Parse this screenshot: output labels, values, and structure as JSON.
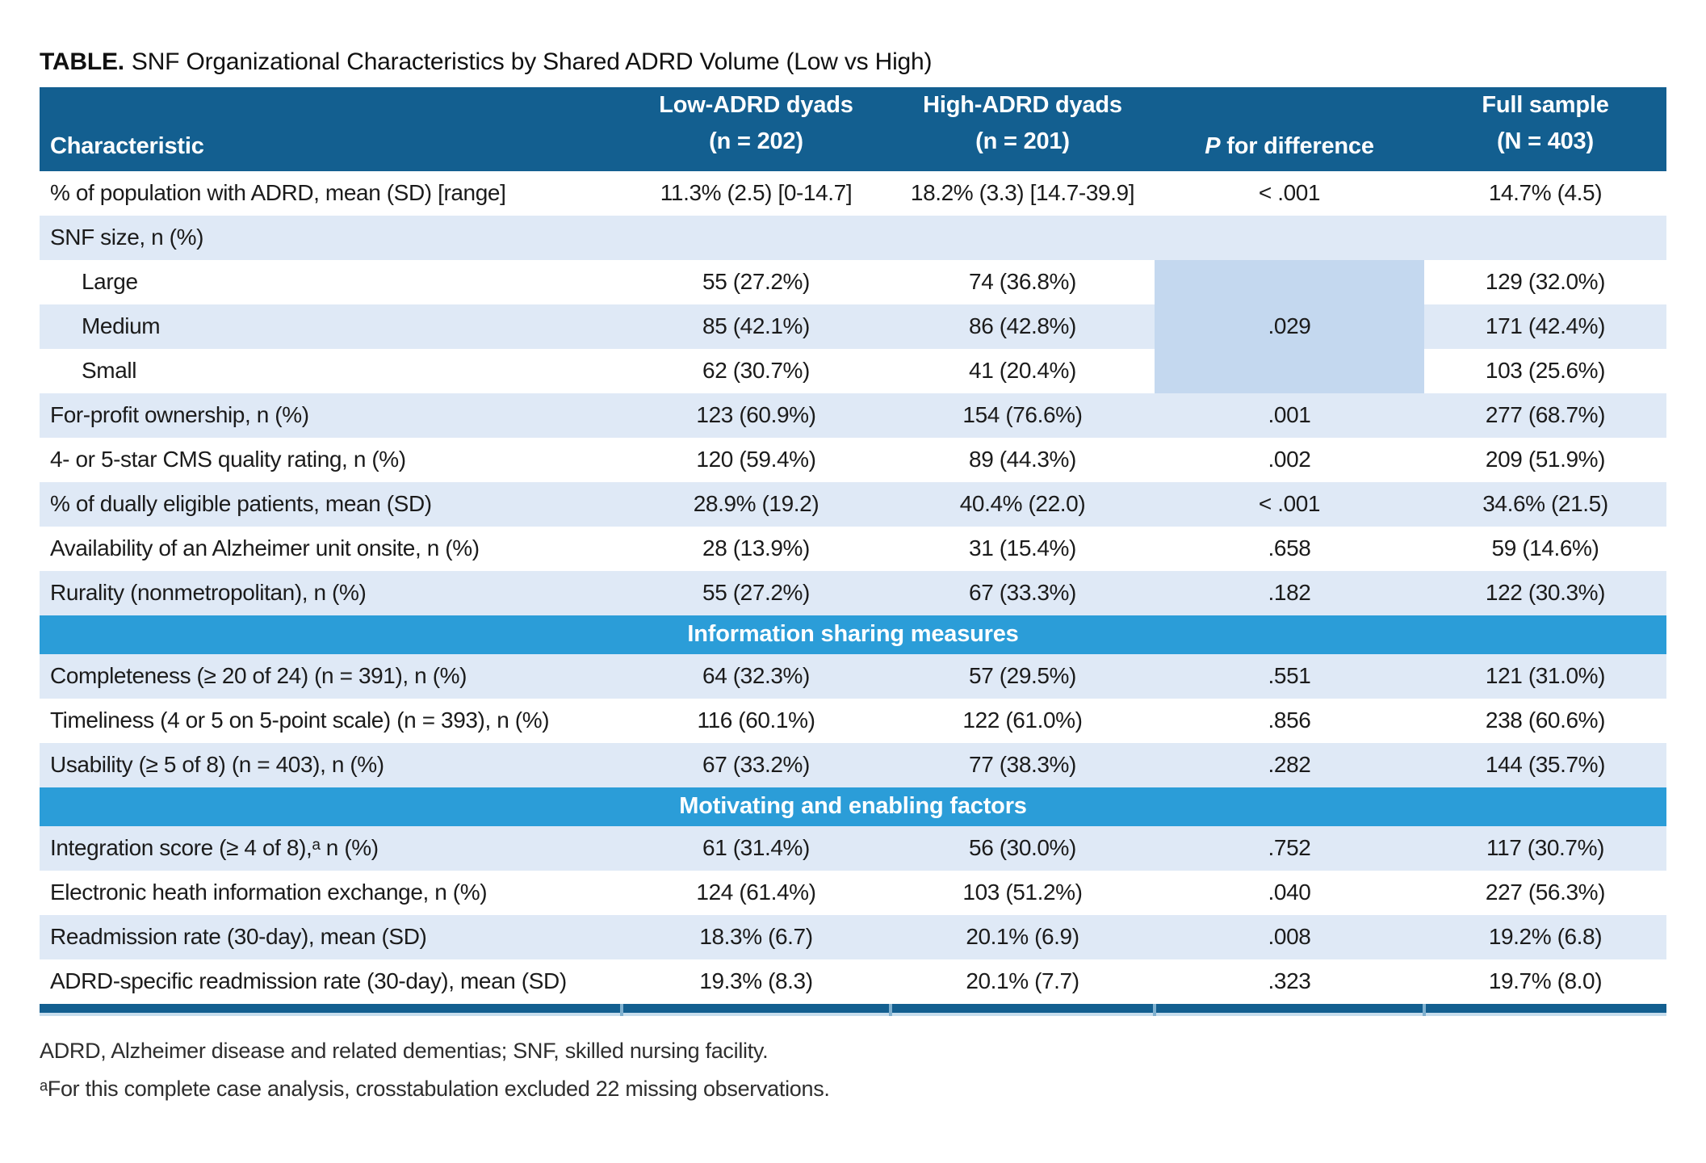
{
  "page": {
    "title_prefix": "TABLE.",
    "title_rest": "SNF Organizational Characteristics by Shared ADRD Volume (Low vs High)"
  },
  "colors": {
    "header_blue": "#135f90",
    "section_blue": "#2b9dd8",
    "row_shade_blue": "#dfe9f6",
    "merged_cell_blue": "#c4d8ef",
    "footer_bar_blue": "#135f90"
  },
  "table": {
    "header": {
      "characteristic": "Characteristic",
      "low": [
        "Low-ADRD dyads",
        "(n = 202)"
      ],
      "high": [
        "High-ADRD dyads",
        "(n = 201)"
      ],
      "p": {
        "italic": "P",
        "rest": " for difference"
      },
      "full": [
        "Full sample",
        "(N = 403)"
      ]
    },
    "rows": [
      {
        "type": "data",
        "label": "% of population with ADRD, mean (SD) [range]",
        "indent": false,
        "low": "11.3% (2.5) [0-14.7]",
        "high": "18.2% (3.3) [14.7-39.9]",
        "p": "< .001",
        "full": "14.7% (4.5)",
        "shade": false
      },
      {
        "type": "group",
        "label": "SNF size, n (%)",
        "shade": true
      },
      {
        "type": "data",
        "label": "Large",
        "indent": true,
        "low": "55 (27.2%)",
        "high": "74 (36.8%)",
        "p": ".029",
        "p_rowspan": 3,
        "full": "129 (32.0%)",
        "shade": false
      },
      {
        "type": "data",
        "label": "Medium",
        "indent": true,
        "low": "85 (42.1%)",
        "high": "86 (42.8%)",
        "full": "171 (42.4%)",
        "shade": true
      },
      {
        "type": "data",
        "label": "Small",
        "indent": true,
        "low": "62 (30.7%)",
        "high": "41 (20.4%)",
        "full": "103 (25.6%)",
        "shade": false
      },
      {
        "type": "data",
        "label": "For-profit ownership, n (%)",
        "indent": false,
        "low": "123 (60.9%)",
        "high": "154 (76.6%)",
        "p": ".001",
        "full": "277 (68.7%)",
        "shade": true
      },
      {
        "type": "data",
        "label": "4- or 5-star CMS quality rating, n (%)",
        "indent": false,
        "low": "120 (59.4%)",
        "high": "89 (44.3%)",
        "p": ".002",
        "full": "209 (51.9%)",
        "shade": false
      },
      {
        "type": "data",
        "label": "% of dually eligible patients, mean (SD)",
        "indent": false,
        "low": "28.9% (19.2)",
        "high": "40.4% (22.0)",
        "p": "< .001",
        "full": "34.6% (21.5)",
        "shade": true
      },
      {
        "type": "data",
        "label": "Availability of an Alzheimer unit onsite, n (%)",
        "indent": false,
        "low": "28 (13.9%)",
        "high": "31 (15.4%)",
        "p": ".658",
        "full": "59 (14.6%)",
        "shade": false
      },
      {
        "type": "data",
        "label": "Rurality (nonmetropolitan), n (%)",
        "indent": false,
        "low": "55 (27.2%)",
        "high": "67 (33.3%)",
        "p": ".182",
        "full": "122 (30.3%)",
        "shade": true
      },
      {
        "type": "section",
        "label": "Information sharing measures"
      },
      {
        "type": "data",
        "label": "Completeness (≥ 20 of 24) (n = 391), n (%)",
        "indent": false,
        "low": "64 (32.3%)",
        "high": "57 (29.5%)",
        "p": ".551",
        "full": "121 (31.0%)",
        "shade": true
      },
      {
        "type": "data",
        "label": "Timeliness (4 or 5 on 5-point scale) (n = 393), n (%)",
        "indent": false,
        "low": "116 (60.1%)",
        "high": "122 (61.0%)",
        "p": ".856",
        "full": "238 (60.6%)",
        "shade": false
      },
      {
        "type": "data",
        "label": "Usability (≥ 5 of 8) (n = 403), n (%)",
        "indent": false,
        "low": "67 (33.2%)",
        "high": "77 (38.3%)",
        "p": ".282",
        "full": "144 (35.7%)",
        "shade": true
      },
      {
        "type": "section",
        "label": "Motivating and enabling factors"
      },
      {
        "type": "data",
        "label": "Integration score (≥ 4 of 8),ᵃ n (%)",
        "indent": false,
        "low": "61 (31.4%)",
        "high": "56 (30.0%)",
        "p": ".752",
        "full": "117 (30.7%)",
        "shade": true
      },
      {
        "type": "data",
        "label": "Electronic heath information exchange, n (%)",
        "indent": false,
        "low": "124 (61.4%)",
        "high": "103 (51.2%)",
        "p": ".040",
        "full": "227 (56.3%)",
        "shade": false
      },
      {
        "type": "data",
        "label": "Readmission rate (30-day), mean (SD)",
        "indent": false,
        "low": "18.3% (6.7)",
        "high": "20.1% (6.9)",
        "p": ".008",
        "full": "19.2% (6.8)",
        "shade": true
      },
      {
        "type": "data",
        "label": "ADRD-specific readmission rate (30-day), mean (SD)",
        "indent": false,
        "low": "19.3% (8.3)",
        "high": "20.1% (7.7)",
        "p": ".323",
        "full": "19.7% (8.0)",
        "shade": false
      }
    ]
  },
  "footnotes": [
    "ADRD, Alzheimer disease and related dementias; SNF, skilled nursing facility.",
    "ᵃFor this complete case analysis, crosstabulation excluded 22 missing observations."
  ]
}
